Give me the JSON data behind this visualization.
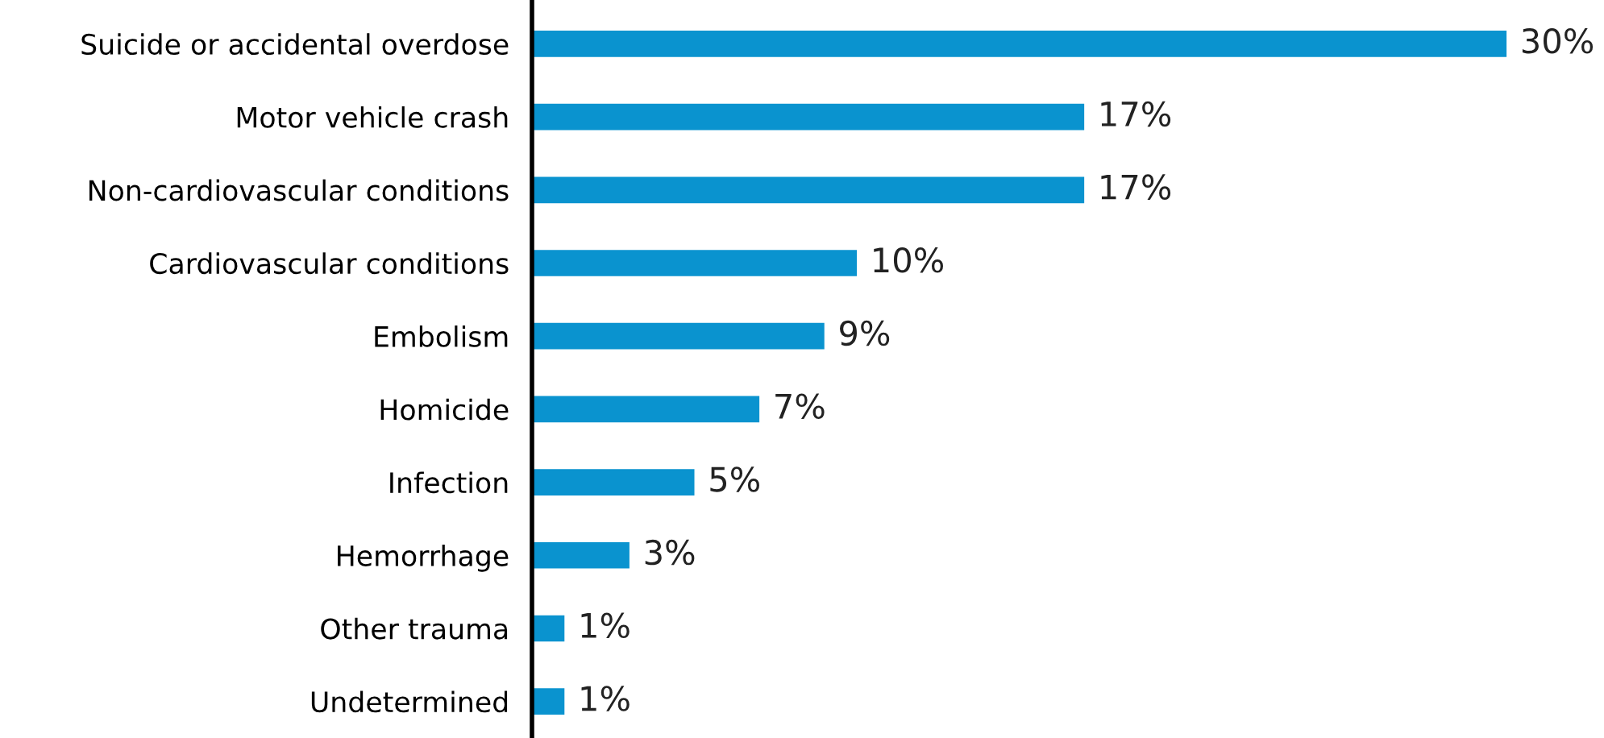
{
  "chart_data": {
    "type": "bar",
    "orientation": "horizontal",
    "categories": [
      "Suicide or accidental overdose",
      "Motor vehicle crash",
      "Non-cardiovascular conditions",
      "Cardiovascular conditions",
      "Embolism",
      "Homicide",
      "Infection",
      "Hemorrhage",
      "Other trauma",
      "Undetermined"
    ],
    "series": [
      {
        "color": "#0a93cf",
        "values": [
          30,
          17,
          17,
          10,
          9,
          7,
          5,
          3,
          1,
          1
        ],
        "value_labels": [
          "30%",
          "17%",
          "17%",
          "10%",
          "9%",
          "7%",
          "5%",
          "3%",
          "1%",
          "1%"
        ]
      }
    ],
    "tick_labels": "y"
  }
}
